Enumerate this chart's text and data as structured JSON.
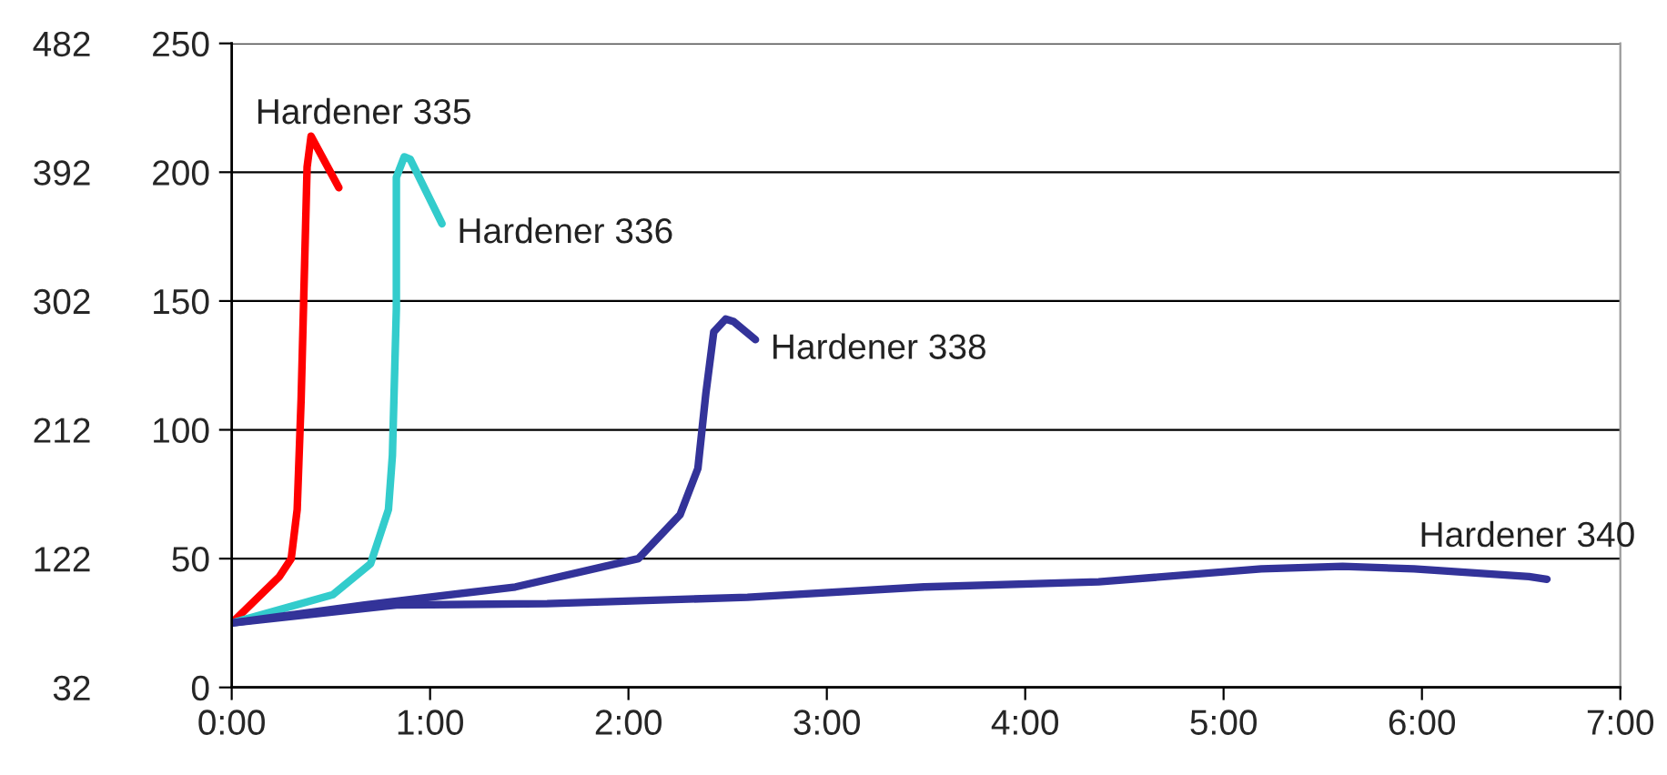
{
  "chart_data": {
    "type": "line",
    "xlim": [
      0,
      7
    ],
    "xticks": [
      {
        "value": 0,
        "label": "0:00"
      },
      {
        "value": 1,
        "label": "1:00"
      },
      {
        "value": 2,
        "label": "2:00"
      },
      {
        "value": 3,
        "label": "3:00"
      },
      {
        "value": 4,
        "label": "4:00"
      },
      {
        "value": 5,
        "label": "5:00"
      },
      {
        "value": 6,
        "label": "6:00"
      },
      {
        "value": 7,
        "label": "7:00"
      }
    ],
    "ylim": [
      0,
      250
    ],
    "yticks": [
      0,
      50,
      100,
      150,
      200,
      250
    ],
    "y2lim": [
      32,
      482
    ],
    "y2ticks": [
      32,
      122,
      212,
      302,
      392,
      482
    ],
    "grid": "y",
    "legend": false,
    "marker": "none",
    "line_style": "solid",
    "series": [
      {
        "name": "Hardener 335",
        "color": "#ff0000",
        "x": [
          0,
          0.24,
          0.3,
          0.33,
          0.35,
          0.38,
          0.4,
          0.54
        ],
        "values": [
          25,
          43,
          50,
          69,
          112,
          202,
          214,
          194
        ]
      },
      {
        "name": "Hardener 336",
        "color": "#33cccc",
        "x": [
          0,
          0.51,
          0.7,
          0.79,
          0.81,
          0.83,
          0.83,
          0.87,
          0.9,
          1.06
        ],
        "values": [
          25,
          36,
          48,
          69,
          90,
          147,
          198,
          206,
          205,
          180
        ]
      },
      {
        "name": "Hardener 338",
        "color": "#333399",
        "x": [
          0,
          0.67,
          1.43,
          2.05,
          2.26,
          2.35,
          2.39,
          2.43,
          2.49,
          2.53,
          2.64
        ],
        "values": [
          25,
          32,
          39,
          50,
          67,
          85,
          114,
          138,
          143,
          142,
          135
        ]
      },
      {
        "name": "Hardener 340",
        "color": "#333399",
        "x": [
          0,
          0.83,
          1.59,
          2.6,
          3.49,
          4.37,
          5.19,
          5.6,
          5.96,
          6.54,
          6.63
        ],
        "values": [
          25,
          32,
          32.5,
          35,
          39,
          41,
          46,
          47,
          46,
          43,
          42
        ]
      }
    ]
  }
}
